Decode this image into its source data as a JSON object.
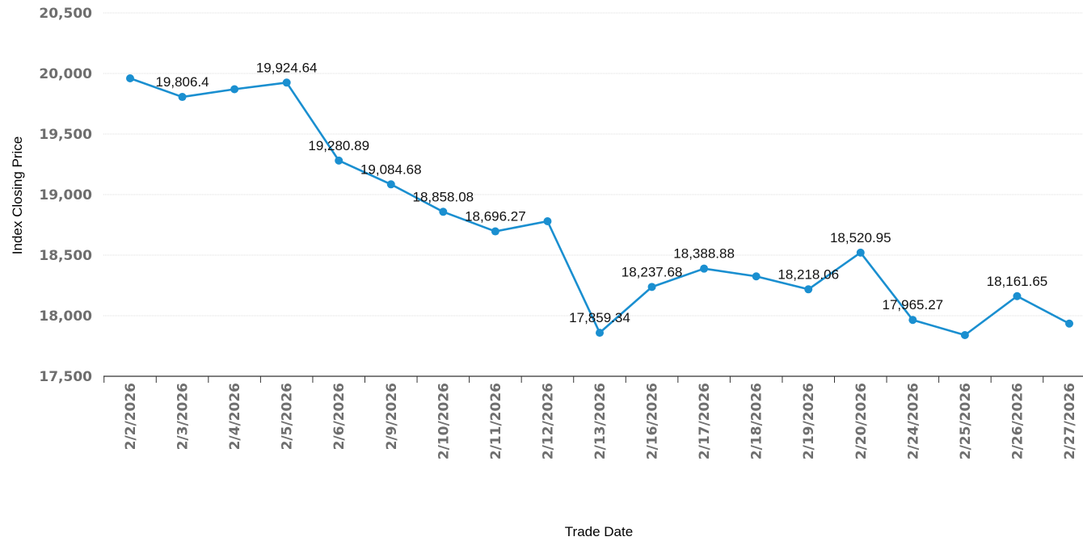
{
  "chart_data": {
    "type": "line",
    "xlabel": "Trade Date",
    "ylabel": "Index Closing Price",
    "ylim": [
      17500,
      20500
    ],
    "yticks": [
      17500,
      18000,
      18500,
      19000,
      19500,
      20000,
      20500
    ],
    "ytick_labels": [
      "17,500",
      "18,000",
      "18,500",
      "19,000",
      "19,500",
      "20,000",
      "20,500"
    ],
    "grid": true,
    "categories": [
      "2/2/2026",
      "2/3/2026",
      "2/4/2026",
      "2/5/2026",
      "2/6/2026",
      "2/9/2026",
      "2/10/2026",
      "2/11/2026",
      "2/12/2026",
      "2/13/2026",
      "2/16/2026",
      "2/17/2026",
      "2/18/2026",
      "2/19/2026",
      "2/20/2026",
      "2/24/2026",
      "2/25/2026",
      "2/26/2026",
      "2/27/2026"
    ],
    "series": [
      {
        "color": "#1a8fd0",
        "values": [
          19960,
          19806.4,
          19870,
          19924.64,
          19280.89,
          19084.68,
          18858.08,
          18696.27,
          18780,
          17859.34,
          18237.68,
          18388.88,
          18325,
          18218.06,
          18520.95,
          17965.27,
          17840,
          18161.65,
          17935
        ],
        "data_labels": [
          "",
          "19,806.4",
          "",
          "19,924.64",
          "19,280.89",
          "19,084.68",
          "18,858.08",
          "18,696.27",
          "",
          "17,859.34",
          "18,237.68",
          "18,388.88",
          "",
          "18,218.06",
          "18,520.95",
          "17,965.27",
          "",
          "18,161.65",
          ""
        ]
      }
    ]
  }
}
